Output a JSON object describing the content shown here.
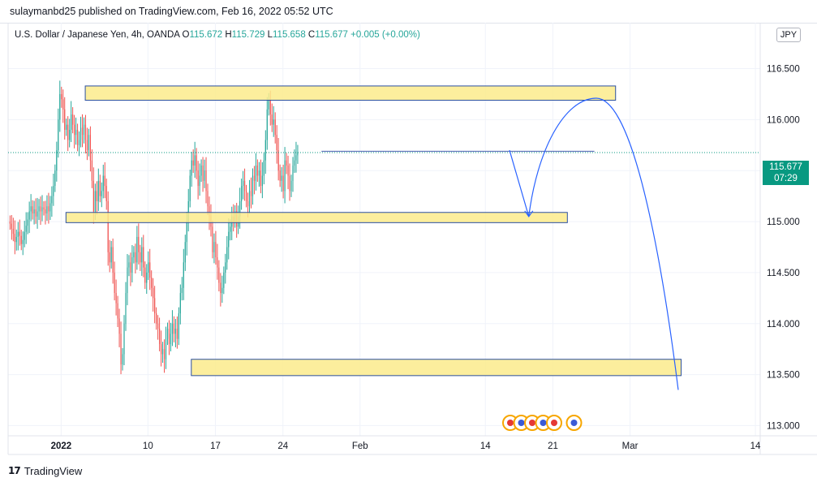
{
  "header": {
    "publisher": "sulaymanbd25 published on TradingView.com, Feb 16, 2022 05:52 UTC"
  },
  "legend": {
    "symbol": "U.S. Dollar / Japanese Yen, 4h, OANDA",
    "open_label": "O",
    "open": "115.672",
    "high_label": "H",
    "high": "115.729",
    "low_label": "L",
    "low": "115.658",
    "close_label": "C",
    "close": "115.677",
    "change": "+0.005 (+0.00%)"
  },
  "currency": "JPY",
  "price_tag": {
    "price": "115.677",
    "countdown": "07:29"
  },
  "footer": {
    "logo": "17",
    "brand": "TradingView"
  },
  "colors": {
    "up": "#26a69a",
    "down": "#ef5350",
    "zone_fill": "#fbeb8c",
    "zone_border": "#2a4fa0",
    "projection": "#2962ff",
    "last_price": "#089981"
  },
  "chart_data": {
    "type": "candlestick",
    "title": "",
    "xlabel": "",
    "ylabel": "",
    "ylim": [
      112.9,
      116.95
    ],
    "y_ticks": [
      113.0,
      113.5,
      114.0,
      114.5,
      115.0,
      115.5,
      116.0,
      116.5
    ],
    "y_tick_labels": [
      "113.000",
      "113.500",
      "114.000",
      "114.500",
      "115.000",
      "115.500",
      "116.000",
      "116.500"
    ],
    "x_ticks": [
      {
        "label": "2022",
        "day": 0
      },
      {
        "label": "10",
        "day": 9
      },
      {
        "label": "17",
        "day": 16
      },
      {
        "label": "24",
        "day": 23
      },
      {
        "label": "Feb",
        "day": 31
      },
      {
        "label": "14",
        "day": 44
      },
      {
        "label": "21",
        "day": 51
      },
      {
        "label": "Mar",
        "day": 59
      },
      {
        "label": "14",
        "day": 72
      }
    ],
    "x_range_days": [
      -5.5,
      72.5
    ],
    "last_price": 115.677,
    "closes": [
      114.98,
      114.93,
      114.88,
      114.8,
      114.85,
      114.9,
      114.86,
      114.78,
      114.82,
      114.9,
      114.96,
      115.02,
      115.1,
      115.15,
      115.08,
      115.12,
      115.05,
      115.1,
      115.15,
      115.1,
      115.14,
      115.12,
      115.08,
      115.15,
      115.1,
      115.18,
      115.25,
      115.35,
      115.5,
      115.7,
      116.0,
      116.25,
      116.2,
      116.1,
      115.9,
      115.95,
      115.8,
      115.9,
      116.05,
      115.95,
      115.85,
      115.9,
      115.75,
      115.8,
      115.92,
      115.85,
      115.95,
      115.8,
      115.7,
      115.85,
      115.6,
      115.4,
      115.1,
      115.3,
      115.2,
      115.4,
      115.25,
      115.3,
      115.45,
      115.35,
      115.2,
      114.7,
      114.6,
      114.75,
      114.5,
      114.3,
      114.2,
      114.05,
      113.9,
      113.6,
      113.7,
      114.0,
      114.3,
      114.55,
      114.6,
      114.5,
      114.65,
      114.7,
      114.6,
      114.85,
      114.7,
      114.6,
      114.75,
      114.55,
      114.4,
      114.5,
      114.6,
      114.45,
      114.35,
      114.25,
      114.1,
      114.0,
      113.95,
      113.8,
      113.7,
      113.75,
      113.65,
      113.85,
      113.95,
      113.8,
      113.9,
      114.0,
      113.9,
      113.95,
      113.85,
      114.1,
      114.3,
      114.35,
      114.6,
      114.8,
      115.0,
      115.2,
      115.45,
      115.6,
      115.55,
      115.65,
      115.5,
      115.35,
      115.45,
      115.55,
      115.4,
      115.5,
      115.3,
      115.15,
      115.05,
      114.95,
      114.7,
      114.8,
      114.65,
      114.55,
      114.4,
      114.3,
      114.35,
      114.5,
      114.6,
      114.75,
      114.9,
      114.95,
      115.05,
      115.0,
      115.1,
      114.95,
      115.05,
      115.2,
      115.35,
      115.4,
      115.3,
      115.2,
      115.15,
      115.3,
      115.25,
      115.45,
      115.4,
      115.55,
      115.45,
      115.5,
      115.35,
      115.45,
      115.6,
      115.8,
      116.1,
      116.2,
      116.05,
      115.95,
      116.0,
      115.85,
      115.7,
      115.5,
      115.4,
      115.45,
      115.3,
      115.6,
      115.55,
      115.45,
      115.3,
      115.4,
      115.55,
      115.6,
      115.65,
      115.68
    ],
    "zones": [
      {
        "day_start": 2.5,
        "day_end": 57.5,
        "low": 116.19,
        "high": 116.33
      },
      {
        "day_start": 0.5,
        "day_end": 52.5,
        "low": 114.99,
        "high": 115.09
      },
      {
        "day_start": 13.5,
        "day_end": 64.3,
        "low": 113.49,
        "high": 113.65
      }
    ],
    "resistance_line": {
      "day_start": 27.0,
      "day_end": 55.3,
      "price": 115.69
    },
    "projection_path": [
      {
        "day": 46.5,
        "price": 115.7
      },
      {
        "day": 48.5,
        "price": 115.05
      },
      {
        "day": 51.5,
        "price": 115.75
      },
      {
        "day": 55.5,
        "price": 116.21
      },
      {
        "day": 60.5,
        "price": 115.6
      },
      {
        "day": 64.0,
        "price": 113.35
      }
    ]
  }
}
